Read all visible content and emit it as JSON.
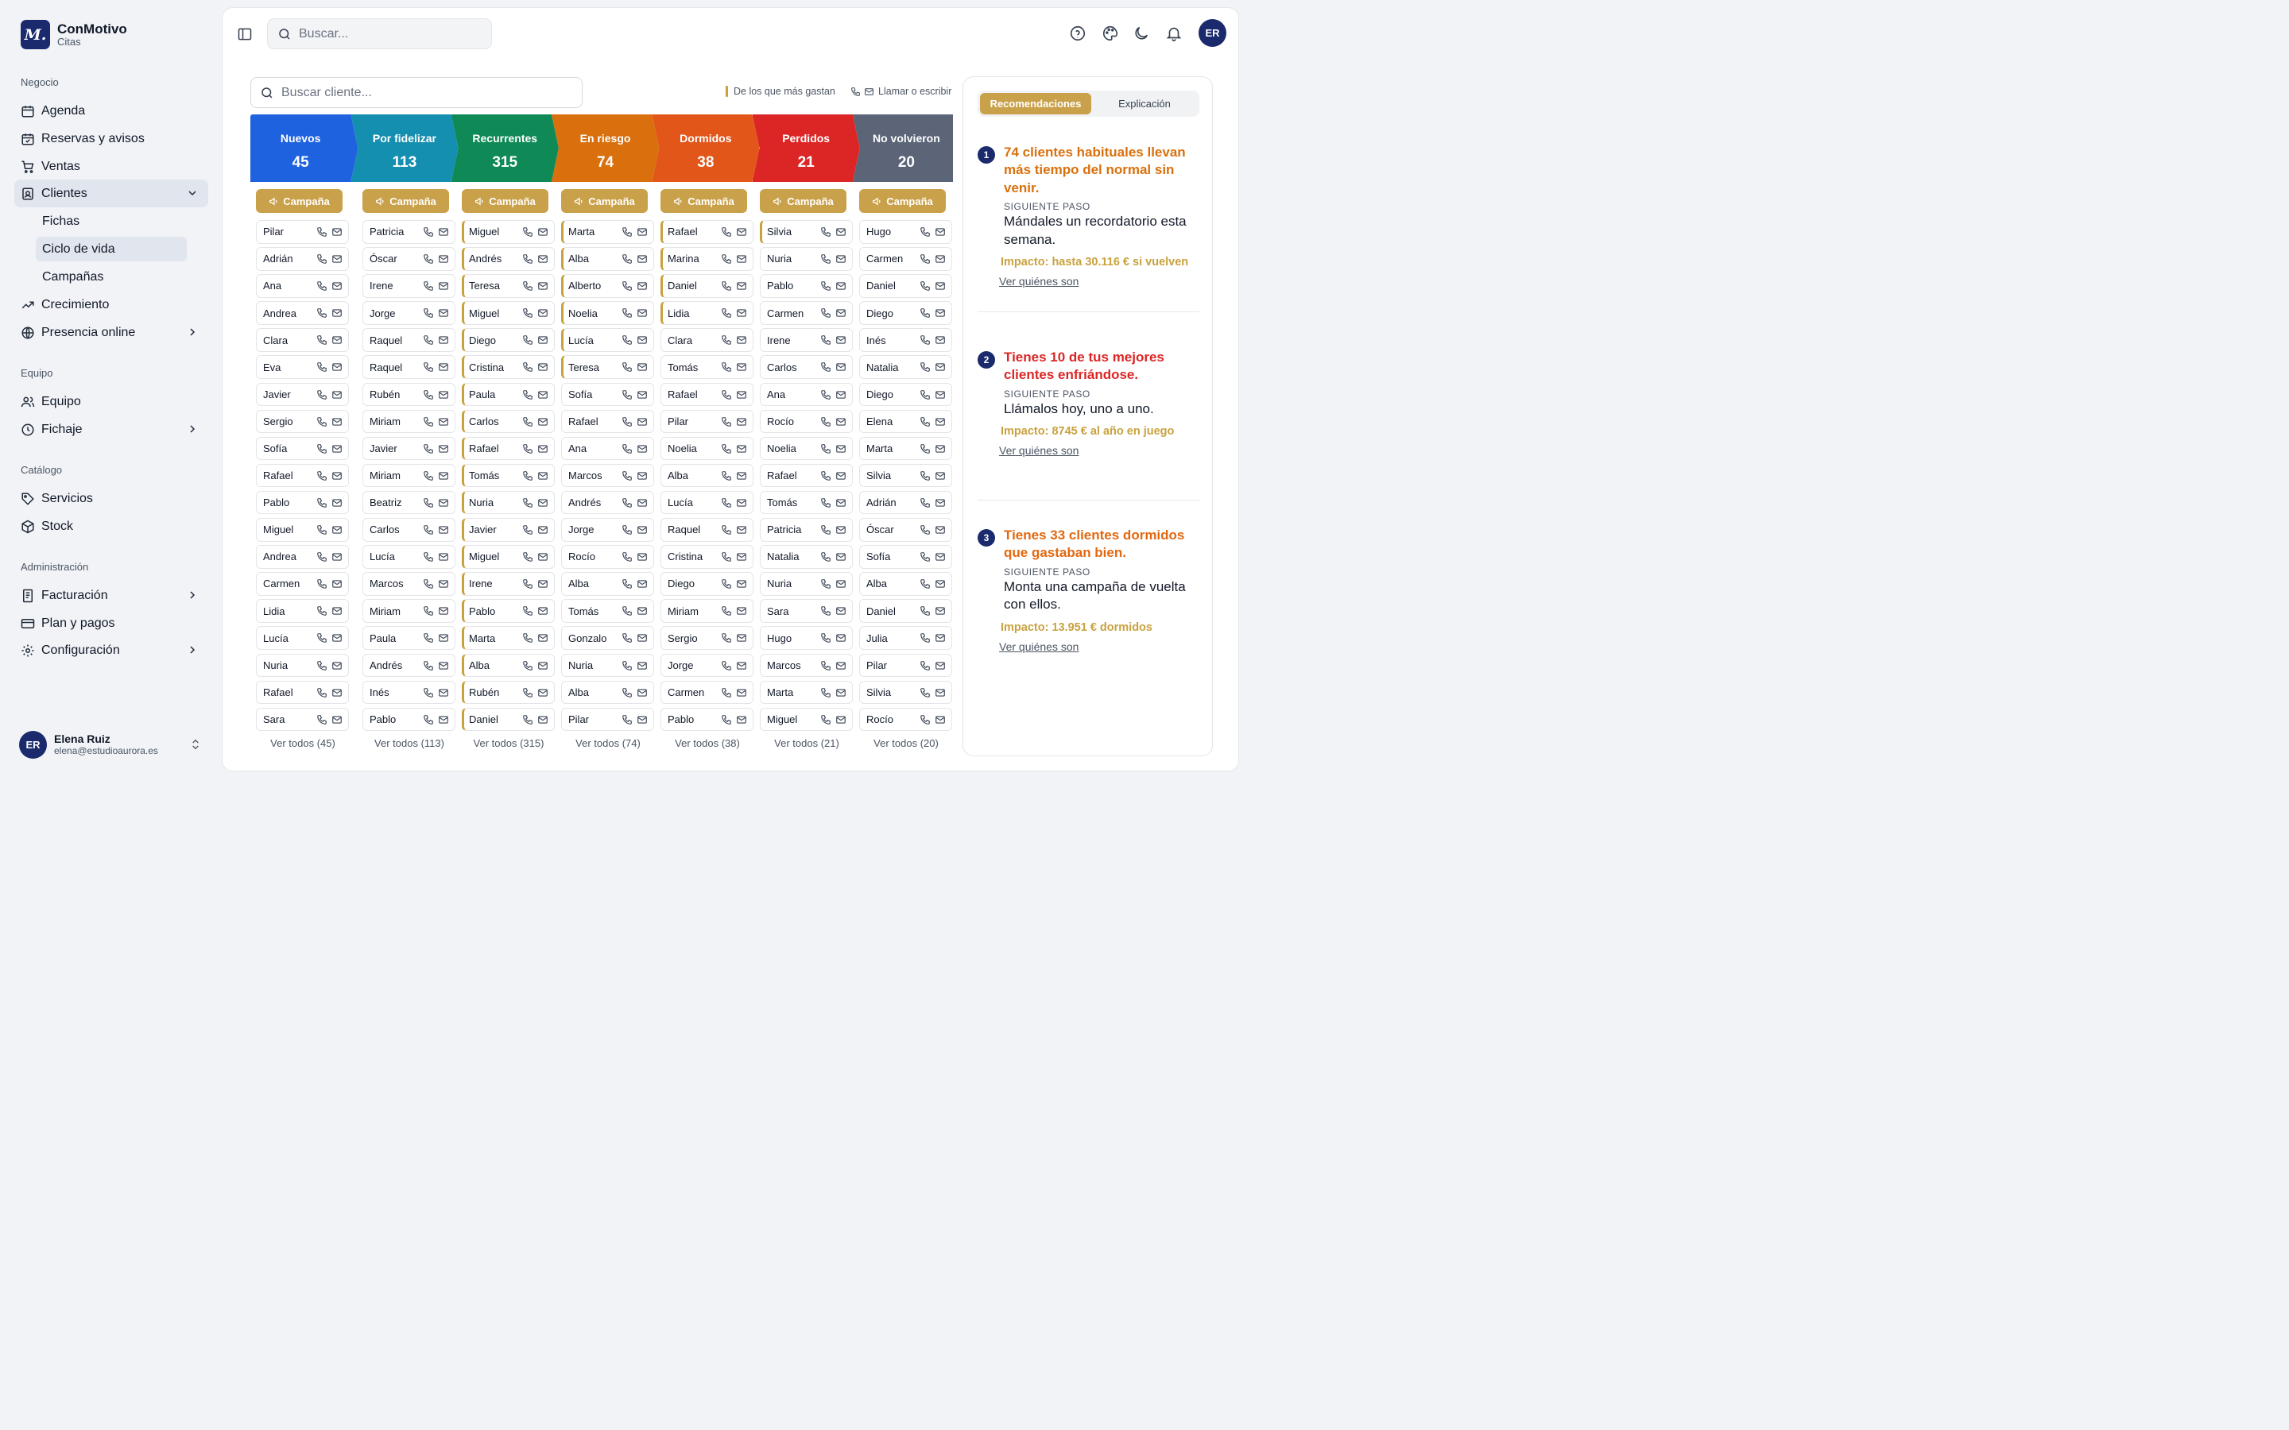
{
  "brand": {
    "logo_letter": "M.",
    "name": "ConMotivo",
    "subtitle": "Citas"
  },
  "sidebar": {
    "sections": [
      "Negocio",
      "Equipo",
      "Catálogo",
      "Administración"
    ],
    "items": {
      "agenda": "Agenda",
      "reservas": "Reservas y avisos",
      "ventas": "Ventas",
      "clientes": "Clientes",
      "fichas": "Fichas",
      "ciclo": "Ciclo de vida",
      "campanas": "Campañas",
      "crecimiento": "Crecimiento",
      "presencia": "Presencia online",
      "equipo": "Equipo",
      "fichaje": "Fichaje",
      "servicios": "Servicios",
      "stock": "Stock",
      "facturacion": "Facturación",
      "plan": "Plan y pagos",
      "configuracion": "Configuración"
    },
    "user": {
      "initials": "ER",
      "name": "Elena Ruiz",
      "email": "elena@estudioaurora.es"
    }
  },
  "topbar": {
    "search_placeholder": "Buscar...",
    "avatar_initials": "ER"
  },
  "lifecycle": {
    "search_placeholder": "Buscar cliente...",
    "legend_spend": "De los que más gastan",
    "legend_contact": "Llamar o escribir",
    "campaign_label": "Campaña",
    "stages": [
      {
        "label": "Nuevos",
        "count": "45",
        "see_all": "Ver todos (45)",
        "color": "#1f62e0",
        "clients": [
          "Pilar",
          "Adrián",
          "Ana",
          "Andrea",
          "Clara",
          "Eva",
          "Javier",
          "Sergio",
          "Sofía",
          "Rafael",
          "Pablo",
          "Miguel",
          "Andrea",
          "Carmen",
          "Lidia",
          "Lucía",
          "Nuria",
          "Rafael",
          "Sara"
        ],
        "spend": []
      },
      {
        "label": "Por fidelizar",
        "count": "113",
        "see_all": "Ver todos (113)",
        "color": "#148fb0",
        "clients": [
          "Patricia",
          "Óscar",
          "Irene",
          "Jorge",
          "Raquel",
          "Raquel",
          "Rubén",
          "Miriam",
          "Javier",
          "Miriam",
          "Beatriz",
          "Carlos",
          "Lucía",
          "Marcos",
          "Miriam",
          "Paula",
          "Andrés",
          "Inés",
          "Pablo"
        ],
        "spend": []
      },
      {
        "label": "Recurrentes",
        "count": "315",
        "see_all": "Ver todos (315)",
        "color": "#0f8a57",
        "clients": [
          "Miguel",
          "Andrés",
          "Teresa",
          "Miguel",
          "Diego",
          "Cristina",
          "Paula",
          "Carlos",
          "Rafael",
          "Tomás",
          "Nuria",
          "Javier",
          "Miguel",
          "Irene",
          "Pablo",
          "Marta",
          "Alba",
          "Rubén",
          "Daniel"
        ],
        "spend": [
          0,
          1,
          2,
          3,
          4,
          5,
          6,
          7,
          8,
          9,
          10,
          11,
          12,
          13,
          14,
          15,
          16,
          17,
          18
        ]
      },
      {
        "label": "En riesgo",
        "count": "74",
        "see_all": "Ver todos (74)",
        "color": "#d9700d",
        "clients": [
          "Marta",
          "Alba",
          "Alberto",
          "Noelia",
          "Lucía",
          "Teresa",
          "Sofía",
          "Rafael",
          "Ana",
          "Marcos",
          "Andrés",
          "Jorge",
          "Rocío",
          "Alba",
          "Tomás",
          "Gonzalo",
          "Nuria",
          "Alba",
          "Pilar"
        ],
        "spend": [
          0,
          1,
          2,
          3,
          4,
          5
        ]
      },
      {
        "label": "Dormidos",
        "count": "38",
        "see_all": "Ver todos (38)",
        "color": "#e2561a",
        "clients": [
          "Rafael",
          "Marina",
          "Daniel",
          "Lidia",
          "Clara",
          "Tomás",
          "Rafael",
          "Pilar",
          "Noelia",
          "Alba",
          "Lucía",
          "Raquel",
          "Cristina",
          "Diego",
          "Miriam",
          "Sergio",
          "Jorge",
          "Carmen",
          "Pablo"
        ],
        "spend": [
          0,
          1,
          2,
          3
        ]
      },
      {
        "label": "Perdidos",
        "count": "21",
        "see_all": "Ver todos (21)",
        "color": "#dc2626",
        "clients": [
          "Silvia",
          "Nuria",
          "Pablo",
          "Carmen",
          "Irene",
          "Carlos",
          "Ana",
          "Rocío",
          "Noelia",
          "Rafael",
          "Tomás",
          "Patricia",
          "Natalia",
          "Nuria",
          "Sara",
          "Hugo",
          "Marcos",
          "Marta",
          "Miguel"
        ],
        "spend": [
          0
        ]
      },
      {
        "label": "No volvieron",
        "count": "20",
        "see_all": "Ver todos (20)",
        "color": "#5b6577",
        "clients": [
          "Hugo",
          "Carmen",
          "Daniel",
          "Diego",
          "Inés",
          "Natalia",
          "Diego",
          "Elena",
          "Marta",
          "Silvia",
          "Adrián",
          "Óscar",
          "Sofía",
          "Alba",
          "Daniel",
          "Julia",
          "Pilar",
          "Silvia",
          "Rocío"
        ],
        "spend": []
      }
    ]
  },
  "recommendations": {
    "tab_active": "Recomendaciones",
    "tab_inactive": "Explicación",
    "items": [
      {
        "num": "1",
        "title": "74 clientes habituales llevan más tiempo del normal sin venir.",
        "title_color": "#d9700d",
        "step_label": "SIGUIENTE PASO",
        "step": "Mándales un recordatorio esta semana.",
        "impact": "Impacto: hasta 30.116 € si vuelven",
        "link": "Ver quiénes son"
      },
      {
        "num": "2",
        "title": "Tienes 10 de tus mejores clientes enfriándose.",
        "title_color": "#dc2626",
        "step_label": "SIGUIENTE PASO",
        "step": "Llámalos hoy, uno a uno.",
        "impact": "Impacto: 8745 € al año en juego",
        "link": "Ver quiénes son"
      },
      {
        "num": "3",
        "title": "Tienes 33 clientes dormidos que gastaban bien.",
        "title_color": "#e2680f",
        "step_label": "SIGUIENTE PASO",
        "step": "Monta una campaña de vuelta con ellos.",
        "impact": "Impacto: 13.951 € dormidos",
        "link": "Ver quiénes son"
      }
    ]
  }
}
